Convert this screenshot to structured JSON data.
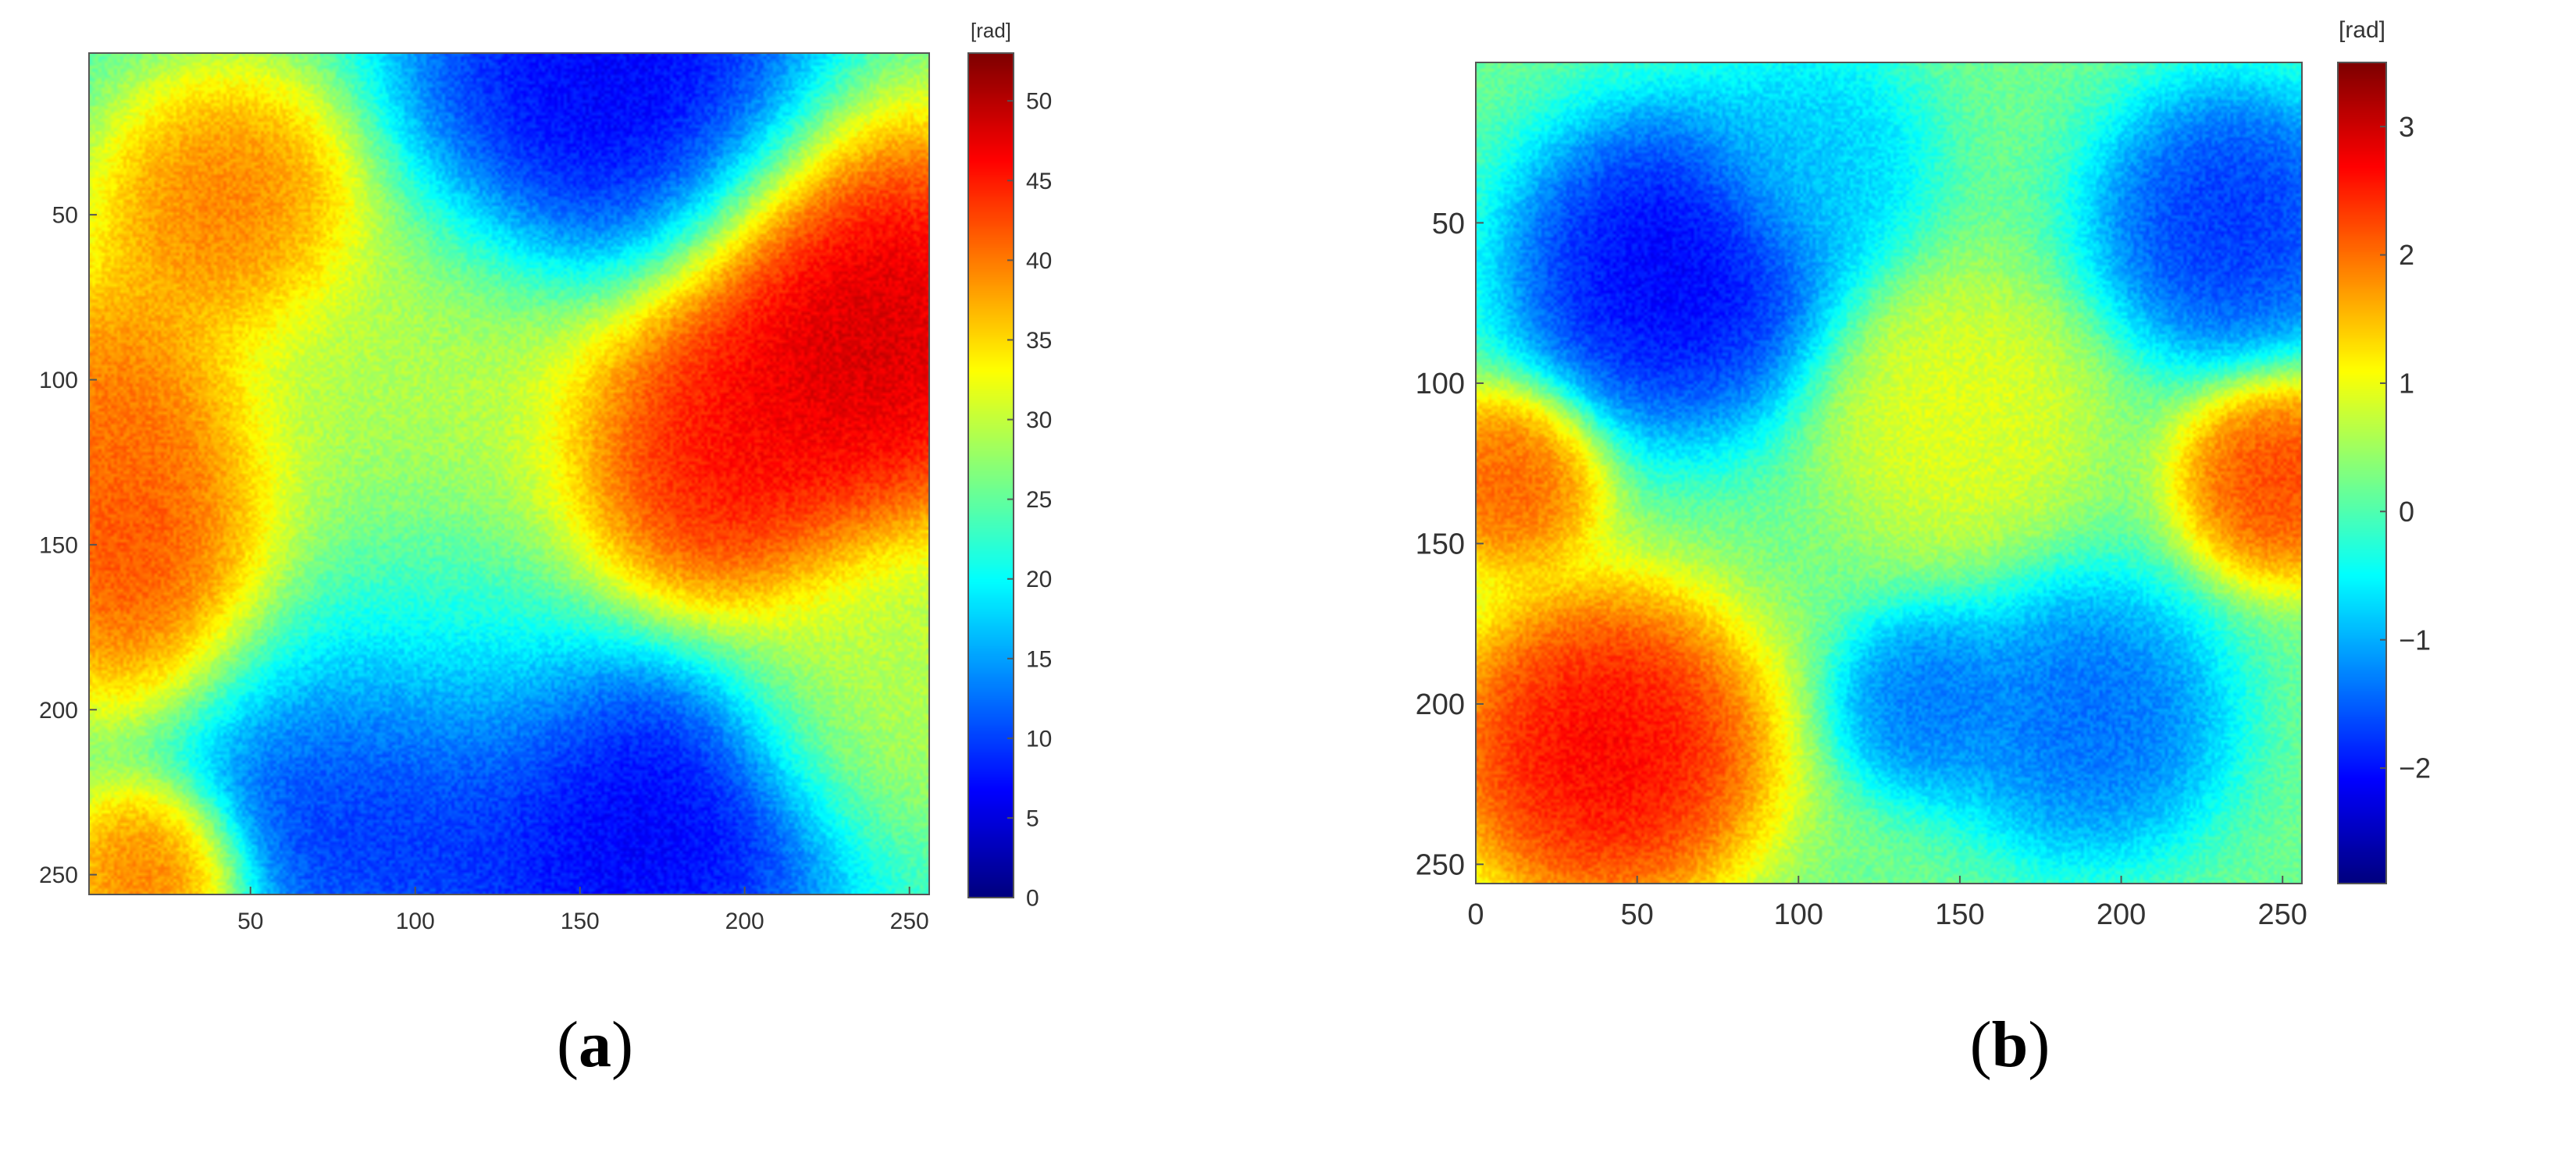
{
  "chart_data": [
    {
      "type": "heatmap",
      "panel_label": "a",
      "title": "",
      "xlabel": "",
      "ylabel": "",
      "xlim": [
        1,
        256
      ],
      "ylim": [
        256,
        1
      ],
      "xticks": [
        50,
        100,
        150,
        200,
        250
      ],
      "yticks": [
        50,
        100,
        150,
        200,
        250
      ],
      "colorbar": {
        "unit_label": "[rad]",
        "range": [
          0,
          53
        ],
        "ticks": [
          0,
          5,
          10,
          15,
          20,
          25,
          30,
          35,
          40,
          45,
          50
        ],
        "colormap": "jet"
      },
      "grid": false,
      "blobs": [
        {
          "x": 160,
          "y": 15,
          "value": 4,
          "spread": 45
        },
        {
          "x": 90,
          "y": 220,
          "value": 5,
          "spread": 40
        },
        {
          "x": 165,
          "y": 235,
          "value": 4,
          "spread": 45
        },
        {
          "x": 235,
          "y": 85,
          "value": 52,
          "spread": 45
        },
        {
          "x": 190,
          "y": 125,
          "value": 48,
          "spread": 40
        },
        {
          "x": 45,
          "y": 50,
          "value": 42,
          "spread": 30
        },
        {
          "x": 20,
          "y": 150,
          "value": 45,
          "spread": 35
        },
        {
          "x": 10,
          "y": 110,
          "value": 42,
          "spread": 30
        },
        {
          "x": 100,
          "y": 110,
          "value": 30,
          "spread": 50
        },
        {
          "x": 240,
          "y": 190,
          "value": 30,
          "spread": 35
        },
        {
          "x": 20,
          "y": 250,
          "value": 42,
          "spread": 20
        },
        {
          "x": 100,
          "y": 180,
          "value": 22,
          "spread": 45
        }
      ],
      "base_value": 24
    },
    {
      "type": "heatmap",
      "panel_label": "b",
      "title": "",
      "xlabel": "",
      "ylabel": "",
      "xlim": [
        0,
        256
      ],
      "ylim": [
        256,
        0
      ],
      "xticks": [
        0,
        50,
        100,
        150,
        200,
        250
      ],
      "yticks": [
        50,
        100,
        150,
        200,
        250
      ],
      "colorbar": {
        "unit_label": "[rad]",
        "range": [
          -2.9,
          3.5
        ],
        "ticks": [
          -2,
          -1,
          0,
          1,
          2,
          3
        ],
        "colormap": "jet"
      },
      "grid": false,
      "blobs": [
        {
          "x": 60,
          "y": 65,
          "value": -2.4,
          "spread": 35
        },
        {
          "x": 235,
          "y": 50,
          "value": -2.0,
          "spread": 30
        },
        {
          "x": 40,
          "y": 215,
          "value": 3.0,
          "spread": 35
        },
        {
          "x": 10,
          "y": 130,
          "value": 2.3,
          "spread": 20
        },
        {
          "x": 250,
          "y": 130,
          "value": 2.5,
          "spread": 22
        },
        {
          "x": 140,
          "y": 200,
          "value": -1.5,
          "spread": 20
        },
        {
          "x": 190,
          "y": 205,
          "value": -1.6,
          "spread": 30
        },
        {
          "x": 150,
          "y": 110,
          "value": 1.0,
          "spread": 30
        },
        {
          "x": 105,
          "y": 30,
          "value": -0.9,
          "spread": 25
        }
      ],
      "base_value": 0.2
    }
  ],
  "captions": {
    "a": "a",
    "b": "b"
  }
}
